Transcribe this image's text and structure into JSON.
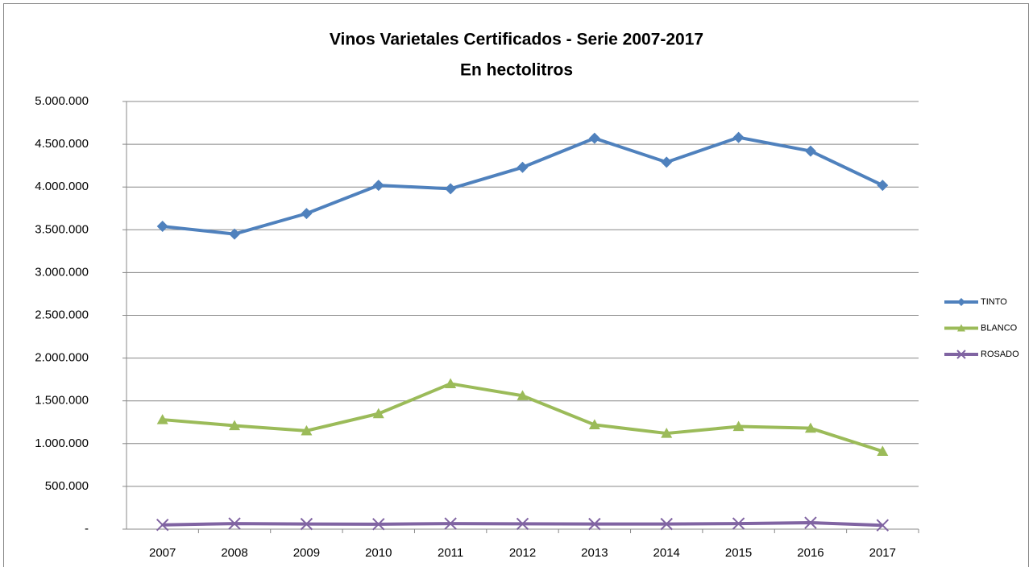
{
  "chart_data": {
    "type": "line",
    "title": "Vinos Varietales Certificados - Serie 2007-2017",
    "subtitle": "En hectolitros",
    "categories": [
      "2007",
      "2008",
      "2009",
      "2010",
      "2011",
      "2012",
      "2013",
      "2014",
      "2015",
      "2016",
      "2017"
    ],
    "series": [
      {
        "name": "TINTO",
        "color": "#4f81bd",
        "marker": "diamond",
        "values": [
          3540000,
          3450000,
          3690000,
          4020000,
          3980000,
          4230000,
          4570000,
          4290000,
          4580000,
          4420000,
          4020000
        ]
      },
      {
        "name": "BLANCO",
        "color": "#9bbb59",
        "marker": "triangle",
        "values": [
          1280000,
          1210000,
          1150000,
          1350000,
          1700000,
          1560000,
          1220000,
          1120000,
          1200000,
          1180000,
          910000
        ]
      },
      {
        "name": "ROSADO",
        "color": "#8064a2",
        "marker": "x",
        "values": [
          50000,
          65000,
          60000,
          58000,
          65000,
          62000,
          60000,
          60000,
          65000,
          75000,
          45000
        ]
      }
    ],
    "ylim": [
      0,
      5000000
    ],
    "yticks": [
      {
        "value": 0,
        "label": "-"
      },
      {
        "value": 500000,
        "label": "500.000"
      },
      {
        "value": 1000000,
        "label": "1.000.000"
      },
      {
        "value": 1500000,
        "label": "1.500.000"
      },
      {
        "value": 2000000,
        "label": "2.000.000"
      },
      {
        "value": 2500000,
        "label": "2.500.000"
      },
      {
        "value": 3000000,
        "label": "3.000.000"
      },
      {
        "value": 3500000,
        "label": "3.500.000"
      },
      {
        "value": 4000000,
        "label": "4.000.000"
      },
      {
        "value": 4500000,
        "label": "4.500.000"
      },
      {
        "value": 5000000,
        "label": "5.000.000"
      }
    ],
    "grid": true,
    "legend": "right"
  }
}
